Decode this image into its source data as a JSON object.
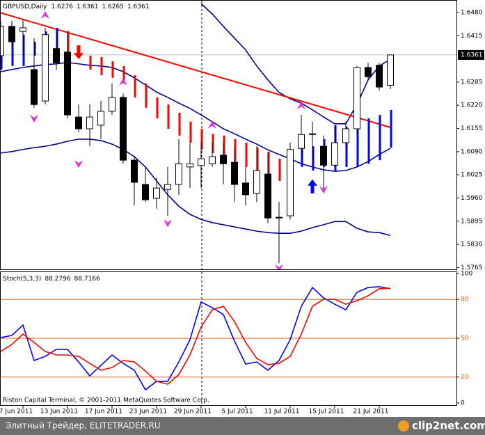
{
  "chart_data": [
    {
      "type": "candlestick",
      "title": "GBPUSD,Daily",
      "categories": [
        null,
        null,
        "7 Jun 2011",
        null,
        null,
        null,
        "13 Jun 2011",
        null,
        null,
        null,
        "17 Jun 2011",
        null,
        null,
        null,
        "23 Jun 2011",
        null,
        null,
        null,
        "29 Jun 2011",
        null,
        null,
        null,
        "5 Jul 2011",
        null,
        null,
        null,
        "11 Jul 2011",
        null,
        null,
        null,
        "15 Jul 2011",
        null,
        null,
        null,
        "21 Jul 2011",
        null
      ],
      "open": [
        1.6359,
        1.6441,
        1.6427,
        1.632,
        1.6232,
        1.6379,
        1.6369,
        1.6187,
        1.6154,
        1.6164,
        1.6203,
        1.6242,
        1.6066,
        1.5998,
        1.5959,
        1.5984,
        1.5998,
        1.6047,
        1.6051,
        1.6056,
        1.608,
        1.606,
        1.6002,
        1.5973,
        1.6027,
        1.5906,
        1.591,
        1.6099,
        1.6138,
        1.6105,
        1.6052,
        1.6115,
        1.6154,
        1.6326,
        1.6332,
        1.6276
      ],
      "high": [
        1.6456,
        1.6457,
        1.646,
        1.6408,
        1.6437,
        1.6427,
        1.6427,
        1.6222,
        1.6222,
        1.6232,
        1.6281,
        1.6252,
        1.6076,
        1.6047,
        1.6017,
        1.6047,
        1.6125,
        1.6115,
        1.6115,
        1.6115,
        1.6115,
        1.6096,
        1.6047,
        1.6105,
        1.6086,
        1.5949,
        1.6115,
        1.6193,
        1.6174,
        1.6135,
        1.6164,
        1.6174,
        1.633,
        1.6339,
        1.6339,
        1.6361
      ],
      "low": [
        1.6349,
        1.6388,
        1.6359,
        1.6213,
        1.6222,
        1.632,
        1.6183,
        1.6144,
        1.6105,
        1.6125,
        1.6193,
        1.6056,
        1.5939,
        1.5949,
        1.593,
        1.591,
        1.5969,
        1.5988,
        1.5988,
        1.6047,
        1.5998,
        1.5949,
        1.5939,
        1.5949,
        1.589,
        1.5777,
        1.59,
        1.6076,
        1.6056,
        1.5978,
        1.6047,
        1.6096,
        1.6144,
        1.6291,
        1.6261,
        1.6265
      ],
      "close": [
        1.6441,
        1.6398,
        1.6437,
        1.6222,
        1.6418,
        1.6339,
        1.6193,
        1.6154,
        1.6187,
        1.6203,
        1.6242,
        1.6066,
        1.6004,
        1.5955,
        1.5988,
        1.5998,
        1.6056,
        1.6056,
        1.607,
        1.6076,
        1.6056,
        1.5998,
        1.5969,
        1.6037,
        1.5904,
        1.5904,
        1.6096,
        1.6138,
        1.614,
        1.6052,
        1.6115,
        1.6154,
        1.6326,
        1.63,
        1.6271,
        1.6361
      ],
      "bands": {
        "color": "#00008b",
        "upper": [
          null,
          null,
          null,
          null,
          null,
          null,
          null,
          null,
          null,
          null,
          null,
          null,
          null,
          null,
          null,
          null,
          null,
          null,
          1.6505,
          1.6476,
          1.6441,
          1.6408,
          1.6375,
          1.633,
          1.6291,
          1.6256,
          1.6238,
          1.6226,
          1.6207,
          1.6187,
          1.6168,
          1.6168,
          1.6222,
          1.6291,
          1.633,
          1.6349
        ],
        "middle": [
          1.6314,
          1.632,
          1.6326,
          1.633,
          1.6334,
          1.6336,
          1.634,
          1.6336,
          1.6332,
          1.633,
          1.6326,
          1.6314,
          1.6297,
          1.6277,
          1.6257,
          1.6242,
          1.6226,
          1.6211,
          1.6193,
          1.6174,
          1.6154,
          1.614,
          1.6125,
          1.6111,
          1.6095,
          1.6082,
          1.607,
          1.6056,
          1.6047,
          1.6039,
          1.6035,
          1.6037,
          1.6047,
          1.6062,
          1.6082,
          1.6099
        ],
        "lower": [
          1.6086,
          1.609,
          1.6096,
          1.6101,
          1.6105,
          1.6111,
          1.6119,
          1.6125,
          1.6125,
          1.6121,
          1.6111,
          1.6096,
          1.6076,
          1.6047,
          1.6008,
          1.5969,
          1.5937,
          1.5914,
          1.59,
          1.5891,
          1.5885,
          1.5879,
          1.5873,
          1.5867,
          1.5863,
          1.5861,
          1.5861,
          1.5867,
          1.5877,
          1.5885,
          1.5894,
          1.5894,
          1.5875,
          1.5865,
          1.5863,
          1.5855
        ]
      },
      "trendline": {
        "x": [
          0,
          35
        ],
        "values": [
          1.6479,
          1.6158
        ],
        "color": "#ff0000"
      },
      "stops": [
        {
          "color": "#ff0000",
          "top": [
            null,
            null,
            null,
            null,
            null,
            null,
            1.6427,
            1.6388,
            1.6359,
            1.6355,
            1.6343,
            1.633,
            1.6304,
            1.6281,
            1.6242,
            1.6222,
            1.6199,
            1.6174,
            1.6154,
            1.614,
            1.6135,
            1.6125,
            1.6115,
            1.6101,
            1.609,
            1.607,
            null,
            null,
            null,
            null,
            null,
            null,
            null,
            null,
            null,
            null
          ],
          "bottom": [
            null,
            null,
            null,
            null,
            null,
            null,
            1.6369,
            1.6359,
            1.632,
            1.6304,
            1.6297,
            1.6281,
            1.6242,
            1.6213,
            1.6183,
            1.6154,
            1.6135,
            1.6115,
            1.6096,
            1.6086,
            1.6066,
            1.6056,
            1.6047,
            1.6037,
            1.6017,
            1.6008,
            null,
            null,
            null,
            null,
            null,
            null,
            null,
            null,
            null,
            null
          ]
        },
        {
          "color": "#0000ff",
          "top": [
            1.6418,
            1.6408,
            1.6418,
            1.6398,
            1.6427,
            1.6437,
            null,
            null,
            null,
            null,
            null,
            null,
            null,
            null,
            null,
            null,
            null,
            null,
            null,
            null,
            null,
            null,
            null,
            null,
            null,
            null,
            null,
            1.6115,
            1.6105,
            1.6125,
            1.6164,
            1.616,
            1.6174,
            1.6183,
            1.6193,
            1.6207
          ],
          "bottom": [
            1.632,
            1.633,
            1.633,
            1.6359,
            1.6359,
            1.6359,
            null,
            null,
            null,
            null,
            null,
            null,
            null,
            null,
            null,
            null,
            null,
            null,
            null,
            null,
            null,
            null,
            null,
            null,
            null,
            null,
            null,
            1.6047,
            1.6037,
            1.6047,
            1.6037,
            1.6047,
            1.6047,
            1.6056,
            1.6066,
            1.6101
          ]
        }
      ],
      "fractals": {
        "color": "#e030e0",
        "index": [
          4,
          11,
          19,
          27,
          3,
          7,
          15,
          25,
          29
        ],
        "values": [
          1.6472,
          1.6285,
          1.6164,
          1.6218,
          1.6183,
          1.6056,
          1.589,
          1.5764,
          1.5984
        ],
        "dir": [
          "up",
          "up",
          "up",
          "up",
          "down",
          "down",
          "down",
          "down",
          "down"
        ]
      },
      "signals": {
        "index": [
          7,
          28
        ],
        "values": [
          1.6349,
          1.6012
        ],
        "dir": [
          "down",
          "up"
        ],
        "colors": [
          "#ff0000",
          "#0000ff"
        ]
      },
      "ylim": [
        1.5758,
        1.6515
      ],
      "yticks": [
        {
          "value": 1.648,
          "label": "1.6480"
        },
        1.6415,
        1.6285,
        {
          "value": 1.622,
          "label": "1.6220"
        },
        1.6155,
        {
          "value": 1.609,
          "label": "1.6090"
        },
        1.6025,
        {
          "value": 1.596,
          "label": "1.5960"
        },
        1.5895,
        {
          "value": 1.583,
          "label": "1.5830"
        },
        1.5765
      ]
    },
    {
      "type": "line",
      "title": "Stoch(5,3,3)",
      "series": [
        {
          "color": "#0000ff",
          "values": [
            50.5,
            52.2,
            60.2,
            32.8,
            36.0,
            41.4,
            41.4,
            31.7,
            21.0,
            29.0,
            37.1,
            30.6,
            25.3,
            10.2,
            16.7,
            16.7,
            31.7,
            48.9,
            78.0,
            73.7,
            68.3,
            47.8,
            30.1,
            31.7,
            25.3,
            32.8,
            48.9,
            74.7,
            89.2,
            81.2,
            76.3,
            72.0,
            85.5,
            89.2,
            89.8,
            88.2796
          ]
        },
        {
          "color": "#ff0000",
          "values": [
            39.8,
            45.2,
            53.2,
            46.8,
            39.8,
            37.1,
            37.1,
            36.0,
            30.6,
            25.3,
            27.4,
            32.8,
            31.7,
            24.7,
            16.7,
            14.5,
            22.0,
            37.1,
            58.6,
            72.0,
            74.7,
            62.9,
            46.8,
            34.4,
            29.6,
            30.6,
            36.0,
            53.2,
            74.7,
            80.1,
            80.1,
            76.3,
            79.0,
            82.8,
            88.2,
            88.7166
          ]
        }
      ],
      "ylim": [
        0,
        100
      ],
      "yticks": [
        0,
        20,
        50,
        80,
        100
      ],
      "levels": [
        20,
        50,
        80
      ],
      "level_color": "#e0641e"
    }
  ],
  "footer": {
    "copyright": "Riston Capital Terminal, © 2001-2011 MetaQuotes Software Corp.",
    "watermark": "Элитный Трейдер, ELITETRADER.RU",
    "logo": "clip2net.com"
  }
}
